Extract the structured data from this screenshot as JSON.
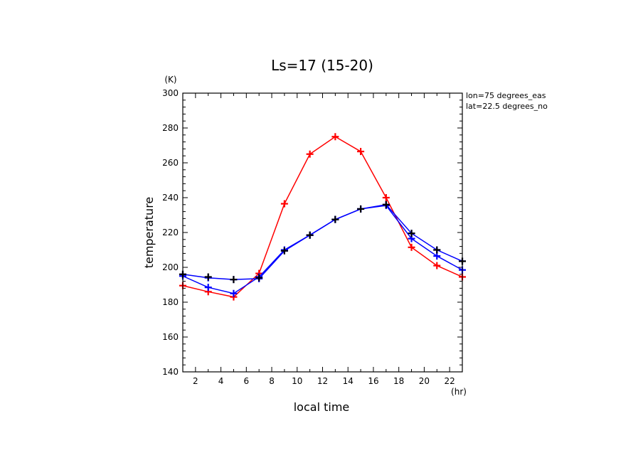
{
  "chart_data": {
    "type": "line",
    "title": "Ls=17 (15-20)",
    "xlabel": "local time",
    "xunit": "(hr)",
    "ylabel": "temperature",
    "yunit": "(K)",
    "xlim": [
      1,
      23
    ],
    "ylim": [
      140,
      300
    ],
    "xticks": [
      2,
      4,
      6,
      8,
      10,
      12,
      14,
      16,
      18,
      20,
      22
    ],
    "yticks": [
      140,
      160,
      180,
      200,
      220,
      240,
      260,
      280,
      300
    ],
    "annotations": [
      "lon=75 degrees_eas",
      "lat=22.5 degrees_no"
    ],
    "grid": false,
    "x": [
      1,
      3,
      5,
      7,
      9,
      11,
      13,
      15,
      17,
      19,
      21,
      23
    ],
    "series": [
      {
        "color": "#ff0000",
        "values": [
          189.5,
          186,
          183,
          196.5,
          236.5,
          265,
          275,
          266.5,
          240,
          211.5,
          201,
          194.5
        ]
      },
      {
        "color": "#0000ff",
        "values": [
          195,
          188.5,
          185,
          194.5,
          210,
          218.5,
          227.5,
          233.5,
          235.5,
          216.5,
          206.5,
          198.5
        ]
      },
      {
        "color": "#0000ff",
        "values": [
          196,
          194,
          193,
          193.5,
          209.5,
          218.5,
          227.5,
          233.5,
          236,
          219.5,
          210,
          203.5
        ]
      },
      {
        "color": "#000000",
        "marker_only": true,
        "values": [
          196,
          194.5,
          193,
          194,
          209.5,
          218.5,
          227.5,
          233.5,
          236,
          219.5,
          210,
          203.5
        ]
      }
    ]
  }
}
